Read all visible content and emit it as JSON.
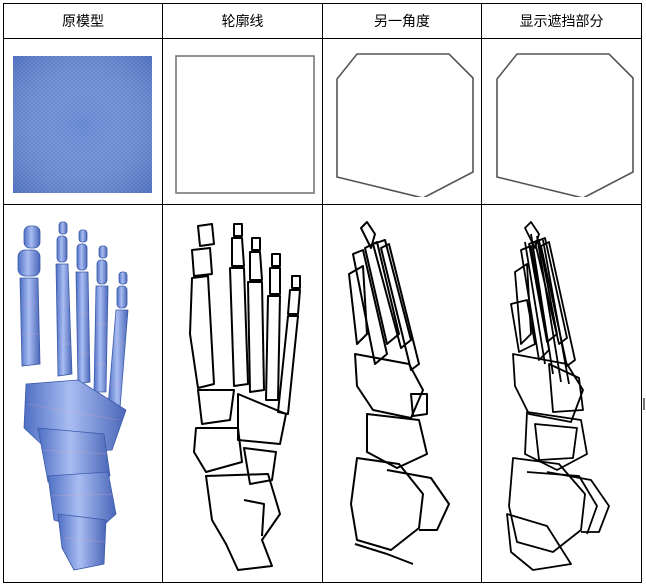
{
  "table": {
    "headers": [
      "原模型",
      "轮廓线",
      "另一角度",
      "显示遮挡部分"
    ]
  },
  "colors": {
    "model_fill": "#6f8fd8",
    "model_mesh": "#5a7cc8",
    "outline": "#777777",
    "bone_stroke": "#000000",
    "grid_line": "#000000"
  },
  "icons": {
    "row1": [
      "blue-square-model",
      "square-outline",
      "hexagon-outline",
      "hexagon-outline-hidden"
    ],
    "row2": [
      "foot-skeleton-model",
      "foot-skeleton-contour",
      "foot-skeleton-angle",
      "foot-skeleton-hidden-lines"
    ]
  }
}
